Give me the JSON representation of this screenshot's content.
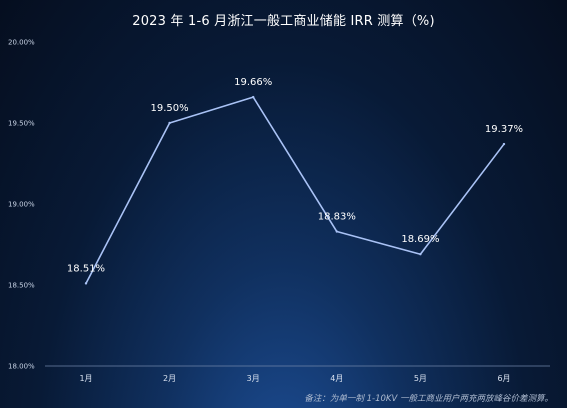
{
  "chart_data": {
    "type": "line",
    "title": "2023 年 1-6 月浙江一般工商业储能 IRR 测算（%)",
    "categories": [
      "1月",
      "2月",
      "3月",
      "4月",
      "5月",
      "6月"
    ],
    "values": [
      18.51,
      19.5,
      19.66,
      18.83,
      18.69,
      19.37
    ],
    "value_labels": [
      "18.51%",
      "19.50%",
      "19.66%",
      "18.83%",
      "18.69%",
      "19.37%"
    ],
    "ylim": [
      18.0,
      20.0
    ],
    "yticks": [
      18.0,
      18.5,
      19.0,
      19.5,
      20.0
    ],
    "ytick_labels": [
      "18.00%",
      "18.50%",
      "19.00%",
      "19.50%",
      "20.00%"
    ],
    "grid": false,
    "line_color": "#a9c2f5",
    "footnote": "备注：为单一制 1-10KV 一般工商业用户两充两放峰谷价差测算。"
  }
}
